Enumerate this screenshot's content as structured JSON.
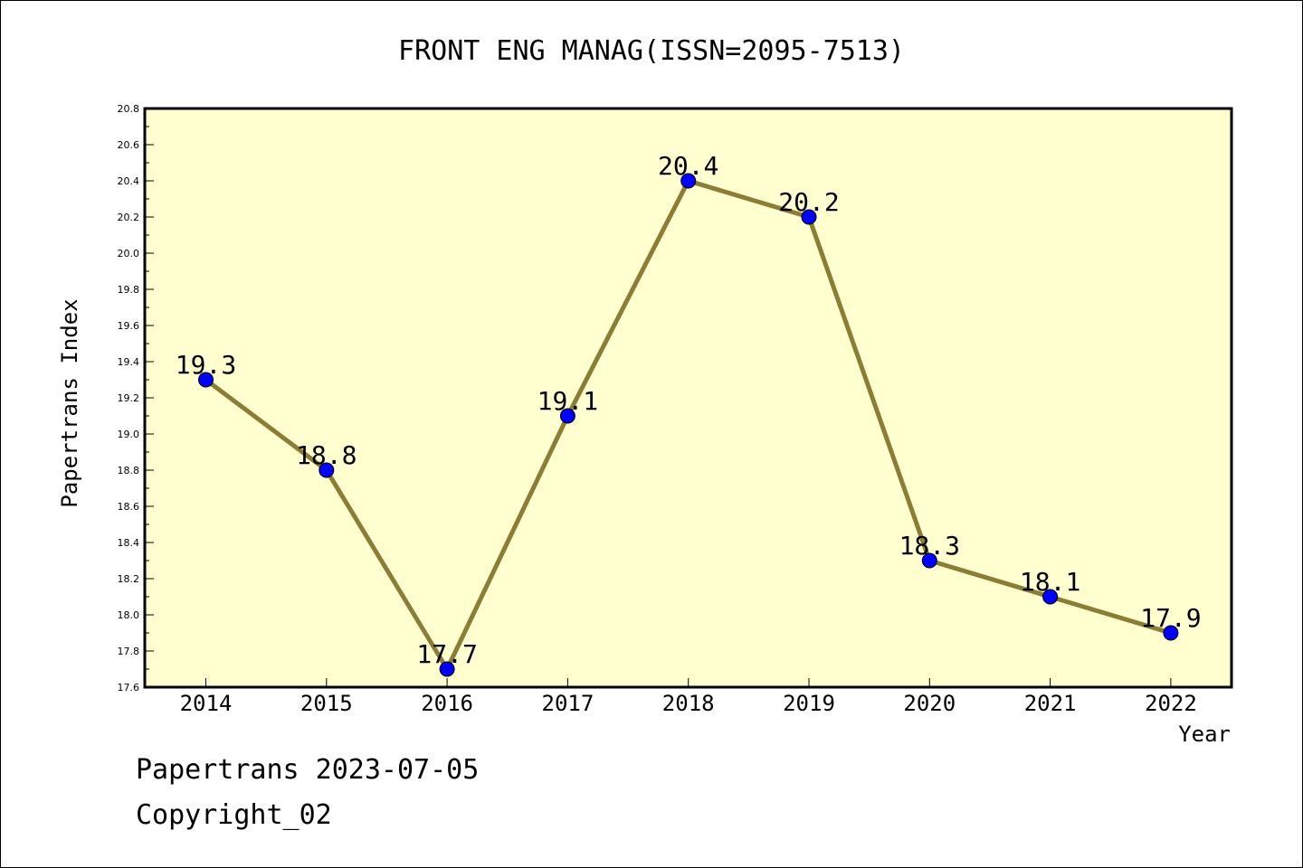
{
  "chart_data": {
    "type": "line",
    "title": "FRONT ENG MANAG(ISSN=2095-7513)",
    "xlabel": "Year",
    "ylabel": "Papertrans Index",
    "categories": [
      "2014",
      "2015",
      "2016",
      "2017",
      "2018",
      "2019",
      "2020",
      "2021",
      "2022"
    ],
    "series": [
      {
        "values": [
          19.3,
          18.8,
          17.7,
          19.1,
          20.4,
          20.2,
          18.3,
          18.1,
          17.9
        ],
        "labels": [
          "19.3",
          "18.8",
          "17.7",
          "19.1",
          "20.4",
          "20.2",
          "18.3",
          "18.1",
          "17.9"
        ]
      }
    ],
    "ylim": [
      17.6,
      20.8
    ],
    "yticks": [
      "17.6",
      "17.8",
      "18.0",
      "18.2",
      "18.4",
      "18.6",
      "18.8",
      "19.0",
      "19.2",
      "19.4",
      "19.6",
      "19.8",
      "20.0",
      "20.2",
      "20.4",
      "20.6",
      "20.8"
    ],
    "grid": false,
    "colors": {
      "plot_background": "#ffffd0",
      "line": "#8b7d35",
      "marker": "#0000ff"
    }
  },
  "footer": {
    "line1": "Papertrans 2023-07-05",
    "line2": "Copyright_02"
  }
}
